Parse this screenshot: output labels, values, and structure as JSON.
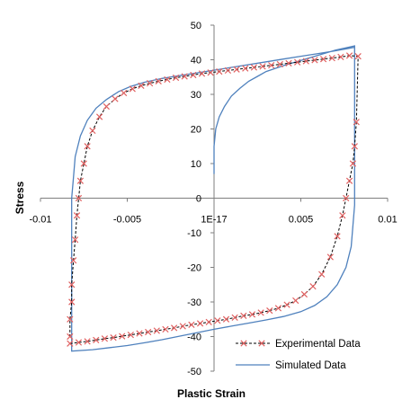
{
  "chart_data": {
    "type": "line",
    "xlabel": "Plastic Strain",
    "ylabel": "Stress",
    "xlim": [
      -0.01,
      0.01
    ],
    "ylim": [
      -50,
      50
    ],
    "x_ticks": [
      "-0.01",
      "-0.005",
      "1E-17",
      "0.005",
      "0.01"
    ],
    "y_ticks": [
      "50",
      "40",
      "30",
      "20",
      "10",
      "0",
      "-10",
      "-20",
      "-30",
      "-40",
      "-50"
    ],
    "legend_position": "bottom-right",
    "grid": false,
    "series": [
      {
        "name": "Experimental Data",
        "style": "dashed-cross",
        "color": "#000000",
        "marker_color": "#e06060",
        "points": [
          [
            -0.0083,
            -42
          ],
          [
            -0.0078,
            -41.7
          ],
          [
            -0.0073,
            -41.4
          ],
          [
            -0.0068,
            -41.0
          ],
          [
            -0.0063,
            -40.6
          ],
          [
            -0.0058,
            -40.3
          ],
          [
            -0.0053,
            -39.9
          ],
          [
            -0.0048,
            -39.5
          ],
          [
            -0.0043,
            -39.1
          ],
          [
            -0.0038,
            -38.7
          ],
          [
            -0.0033,
            -38.3
          ],
          [
            -0.0028,
            -37.9
          ],
          [
            -0.0023,
            -37.5
          ],
          [
            -0.0018,
            -37.0
          ],
          [
            -0.0013,
            -36.6
          ],
          [
            -0.0008,
            -36.2
          ],
          [
            -0.0003,
            -35.8
          ],
          [
            0.0002,
            -35.4
          ],
          [
            0.0007,
            -35.0
          ],
          [
            0.0012,
            -34.5
          ],
          [
            0.0017,
            -34.0
          ],
          [
            0.0022,
            -33.6
          ],
          [
            0.0027,
            -33.1
          ],
          [
            0.0032,
            -32.5
          ],
          [
            0.0037,
            -31.8
          ],
          [
            0.0042,
            -30.8
          ],
          [
            0.0047,
            -29.6
          ],
          [
            0.0052,
            -27.8
          ],
          [
            0.0057,
            -25.5
          ],
          [
            0.0062,
            -22.0
          ],
          [
            0.0067,
            -17.0
          ],
          [
            0.0071,
            -11.0
          ],
          [
            0.0074,
            -5.0
          ],
          [
            0.0076,
            0.0
          ],
          [
            0.0078,
            5.0
          ],
          [
            0.008,
            10.0
          ],
          [
            0.0081,
            15.0
          ],
          [
            0.0082,
            22.0
          ],
          [
            0.0083,
            41.0
          ],
          [
            0.0078,
            41.2
          ],
          [
            0.0073,
            40.8
          ],
          [
            0.0068,
            40.5
          ],
          [
            0.0063,
            40.2
          ],
          [
            0.0058,
            39.9
          ],
          [
            0.0053,
            39.6
          ],
          [
            0.0048,
            39.3
          ],
          [
            0.0043,
            39.0
          ],
          [
            0.0038,
            38.7
          ],
          [
            0.0033,
            38.4
          ],
          [
            0.0028,
            38.1
          ],
          [
            0.0023,
            37.8
          ],
          [
            0.0018,
            37.5
          ],
          [
            0.0013,
            37.2
          ],
          [
            0.0008,
            36.9
          ],
          [
            0.0003,
            36.6
          ],
          [
            -0.0002,
            36.3
          ],
          [
            -0.0007,
            36.0
          ],
          [
            -0.0012,
            35.6
          ],
          [
            -0.0017,
            35.2
          ],
          [
            -0.0022,
            34.8
          ],
          [
            -0.0027,
            34.3
          ],
          [
            -0.0032,
            33.8
          ],
          [
            -0.0037,
            33.2
          ],
          [
            -0.0042,
            32.5
          ],
          [
            -0.0047,
            31.6
          ],
          [
            -0.0052,
            30.4
          ],
          [
            -0.0057,
            28.7
          ],
          [
            -0.0062,
            26.5
          ],
          [
            -0.0066,
            23.5
          ],
          [
            -0.007,
            19.5
          ],
          [
            -0.0073,
            15.0
          ],
          [
            -0.0075,
            10.0
          ],
          [
            -0.0077,
            5.0
          ],
          [
            -0.0078,
            0.0
          ],
          [
            -0.0079,
            -5.0
          ],
          [
            -0.008,
            -12.0
          ],
          [
            -0.0081,
            -18.0
          ],
          [
            -0.0082,
            -25.0
          ],
          [
            -0.0082,
            -30.0
          ],
          [
            -0.0083,
            -35.0
          ],
          [
            -0.0083,
            -40.0
          ]
        ]
      },
      {
        "name": "Simulated Data",
        "style": "solid",
        "color": "#4f81bd",
        "points": [
          [
            0.0,
            7.0
          ],
          [
            0.0,
            15.0
          ],
          [
            0.0001,
            20.0
          ],
          [
            0.0003,
            23.5
          ],
          [
            0.0006,
            26.5
          ],
          [
            0.001,
            29.5
          ],
          [
            0.0015,
            31.8
          ],
          [
            0.002,
            33.8
          ],
          [
            0.0025,
            35.2
          ],
          [
            0.003,
            36.6
          ],
          [
            0.004,
            38.3
          ],
          [
            0.005,
            39.8
          ],
          [
            0.006,
            41.3
          ],
          [
            0.007,
            42.8
          ],
          [
            0.0081,
            44.0
          ],
          [
            0.0081,
            -2.0
          ],
          [
            0.008,
            -8.0
          ],
          [
            0.0079,
            -14.0
          ],
          [
            0.0076,
            -20.0
          ],
          [
            0.0071,
            -25.0
          ],
          [
            0.0065,
            -28.5
          ],
          [
            0.0058,
            -31.0
          ],
          [
            0.005,
            -32.8
          ],
          [
            0.004,
            -34.2
          ],
          [
            0.003,
            -35.2
          ],
          [
            0.002,
            -36.1
          ],
          [
            0.001,
            -37.0
          ],
          [
            0.0,
            -37.9
          ],
          [
            -0.001,
            -38.9
          ],
          [
            -0.002,
            -39.9
          ],
          [
            -0.003,
            -40.9
          ],
          [
            -0.004,
            -41.8
          ],
          [
            -0.005,
            -42.6
          ],
          [
            -0.006,
            -43.2
          ],
          [
            -0.007,
            -43.8
          ],
          [
            -0.0082,
            -44.2
          ],
          [
            -0.0082,
            0.0
          ],
          [
            -0.0081,
            6.0
          ],
          [
            -0.008,
            12.0
          ],
          [
            -0.0077,
            18.0
          ],
          [
            -0.0073,
            22.5
          ],
          [
            -0.0068,
            26.0
          ],
          [
            -0.0062,
            28.5
          ],
          [
            -0.0055,
            30.8
          ],
          [
            -0.0048,
            32.3
          ],
          [
            -0.004,
            33.5
          ],
          [
            -0.003,
            34.6
          ],
          [
            -0.002,
            35.4
          ],
          [
            -0.001,
            36.2
          ],
          [
            0.0,
            37.0
          ],
          [
            0.001,
            37.8
          ],
          [
            0.002,
            38.6
          ],
          [
            0.003,
            39.4
          ],
          [
            0.004,
            40.2
          ],
          [
            0.005,
            41.0
          ],
          [
            0.006,
            41.8
          ],
          [
            0.007,
            42.6
          ],
          [
            0.0081,
            43.6
          ]
        ]
      }
    ]
  }
}
